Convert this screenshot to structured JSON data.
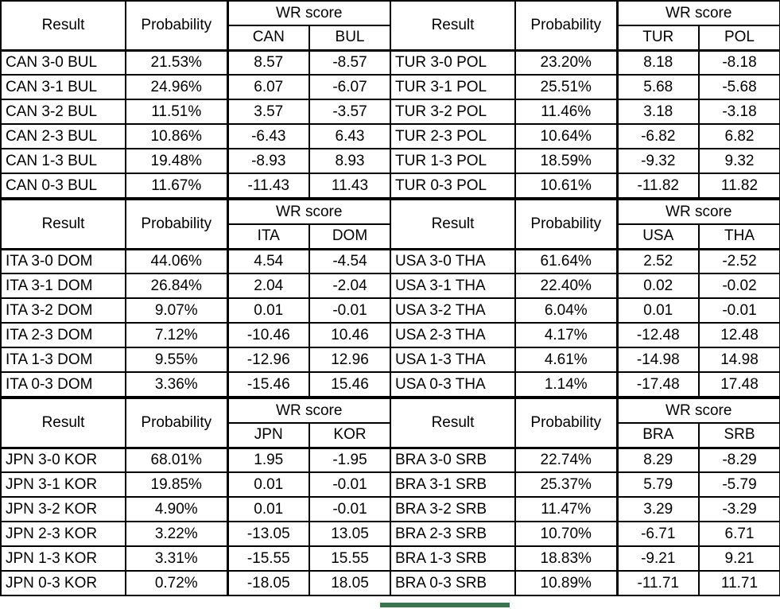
{
  "labels": {
    "result": "Result",
    "probability": "Probability",
    "wr_score": "WR score"
  },
  "colors": {
    "grid_black": "#000000",
    "selection_green": "#38764d",
    "background": "#ffffff"
  },
  "selection_indicator": {
    "under_result_cell": "BRA 0-3 SRB"
  },
  "tables": [
    {
      "team1": "CAN",
      "team2": "BUL",
      "rows": [
        {
          "result": "CAN 3-0 BUL",
          "probability": "21.53%",
          "team1_score": "8.57",
          "team2_score": "-8.57"
        },
        {
          "result": "CAN 3-1 BUL",
          "probability": "24.96%",
          "team1_score": "6.07",
          "team2_score": "-6.07"
        },
        {
          "result": "CAN 3-2 BUL",
          "probability": "11.51%",
          "team1_score": "3.57",
          "team2_score": "-3.57"
        },
        {
          "result": "CAN 2-3 BUL",
          "probability": "10.86%",
          "team1_score": "-6.43",
          "team2_score": "6.43"
        },
        {
          "result": "CAN 1-3 BUL",
          "probability": "19.48%",
          "team1_score": "-8.93",
          "team2_score": "8.93"
        },
        {
          "result": "CAN 0-3 BUL",
          "probability": "11.67%",
          "team1_score": "-11.43",
          "team2_score": "11.43"
        }
      ]
    },
    {
      "team1": "TUR",
      "team2": "POL",
      "rows": [
        {
          "result": "TUR 3-0 POL",
          "probability": "23.20%",
          "team1_score": "8.18",
          "team2_score": "-8.18"
        },
        {
          "result": "TUR 3-1 POL",
          "probability": "25.51%",
          "team1_score": "5.68",
          "team2_score": "-5.68"
        },
        {
          "result": "TUR 3-2 POL",
          "probability": "11.46%",
          "team1_score": "3.18",
          "team2_score": "-3.18"
        },
        {
          "result": "TUR 2-3 POL",
          "probability": "10.64%",
          "team1_score": "-6.82",
          "team2_score": "6.82"
        },
        {
          "result": "TUR 1-3 POL",
          "probability": "18.59%",
          "team1_score": "-9.32",
          "team2_score": "9.32"
        },
        {
          "result": "TUR 0-3 POL",
          "probability": "10.61%",
          "team1_score": "-11.82",
          "team2_score": "11.82"
        }
      ]
    },
    {
      "team1": "ITA",
      "team2": "DOM",
      "rows": [
        {
          "result": "ITA 3-0 DOM",
          "probability": "44.06%",
          "team1_score": "4.54",
          "team2_score": "-4.54"
        },
        {
          "result": "ITA 3-1 DOM",
          "probability": "26.84%",
          "team1_score": "2.04",
          "team2_score": "-2.04"
        },
        {
          "result": "ITA 3-2 DOM",
          "probability": "9.07%",
          "team1_score": "0.01",
          "team2_score": "-0.01"
        },
        {
          "result": "ITA 2-3 DOM",
          "probability": "7.12%",
          "team1_score": "-10.46",
          "team2_score": "10.46"
        },
        {
          "result": "ITA 1-3 DOM",
          "probability": "9.55%",
          "team1_score": "-12.96",
          "team2_score": "12.96"
        },
        {
          "result": "ITA 0-3 DOM",
          "probability": "3.36%",
          "team1_score": "-15.46",
          "team2_score": "15.46"
        }
      ]
    },
    {
      "team1": "USA",
      "team2": "THA",
      "rows": [
        {
          "result": "USA 3-0 THA",
          "probability": "61.64%",
          "team1_score": "2.52",
          "team2_score": "-2.52"
        },
        {
          "result": "USA 3-1 THA",
          "probability": "22.40%",
          "team1_score": "0.02",
          "team2_score": "-0.02"
        },
        {
          "result": "USA 3-2 THA",
          "probability": "6.04%",
          "team1_score": "0.01",
          "team2_score": "-0.01"
        },
        {
          "result": "USA 2-3 THA",
          "probability": "4.17%",
          "team1_score": "-12.48",
          "team2_score": "12.48"
        },
        {
          "result": "USA 1-3 THA",
          "probability": "4.61%",
          "team1_score": "-14.98",
          "team2_score": "14.98"
        },
        {
          "result": "USA 0-3 THA",
          "probability": "1.14%",
          "team1_score": "-17.48",
          "team2_score": "17.48"
        }
      ]
    },
    {
      "team1": "JPN",
      "team2": "KOR",
      "rows": [
        {
          "result": "JPN 3-0 KOR",
          "probability": "68.01%",
          "team1_score": "1.95",
          "team2_score": "-1.95"
        },
        {
          "result": "JPN 3-1 KOR",
          "probability": "19.85%",
          "team1_score": "0.01",
          "team2_score": "-0.01"
        },
        {
          "result": "JPN 3-2 KOR",
          "probability": "4.90%",
          "team1_score": "0.01",
          "team2_score": "-0.01"
        },
        {
          "result": "JPN 2-3 KOR",
          "probability": "3.22%",
          "team1_score": "-13.05",
          "team2_score": "13.05"
        },
        {
          "result": "JPN 1-3 KOR",
          "probability": "3.31%",
          "team1_score": "-15.55",
          "team2_score": "15.55"
        },
        {
          "result": "JPN 0-3 KOR",
          "probability": "0.72%",
          "team1_score": "-18.05",
          "team2_score": "18.05"
        }
      ]
    },
    {
      "team1": "BRA",
      "team2": "SRB",
      "rows": [
        {
          "result": "BRA 3-0 SRB",
          "probability": "22.74%",
          "team1_score": "8.29",
          "team2_score": "-8.29"
        },
        {
          "result": "BRA 3-1 SRB",
          "probability": "25.37%",
          "team1_score": "5.79",
          "team2_score": "-5.79"
        },
        {
          "result": "BRA 3-2 SRB",
          "probability": "11.47%",
          "team1_score": "3.29",
          "team2_score": "-3.29"
        },
        {
          "result": "BRA 2-3 SRB",
          "probability": "10.70%",
          "team1_score": "-6.71",
          "team2_score": "6.71"
        },
        {
          "result": "BRA 1-3 SRB",
          "probability": "18.83%",
          "team1_score": "-9.21",
          "team2_score": "9.21"
        },
        {
          "result": "BRA 0-3 SRB",
          "probability": "10.89%",
          "team1_score": "-11.71",
          "team2_score": "11.71"
        }
      ]
    }
  ]
}
